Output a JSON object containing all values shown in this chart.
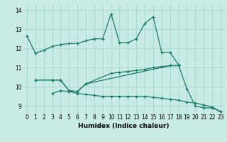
{
  "title": "",
  "xlabel": "Humidex (Indice chaleur)",
  "background_color": "#c8ebe6",
  "grid_color": "#a8d8d0",
  "line_color": "#1a7a6a",
  "xlim": [
    -0.5,
    23.5
  ],
  "ylim": [
    8.6,
    14.3
  ],
  "yticks": [
    9,
    10,
    11,
    12,
    13,
    14
  ],
  "xticks": [
    0,
    1,
    2,
    3,
    4,
    5,
    6,
    7,
    8,
    9,
    10,
    11,
    12,
    13,
    14,
    15,
    16,
    17,
    18,
    19,
    20,
    21,
    22,
    23
  ],
  "line1_x": [
    0,
    1,
    2,
    3,
    4,
    5,
    6,
    7,
    8,
    9,
    10,
    11,
    12,
    13,
    14,
    15,
    16,
    17,
    18,
    19,
    20,
    21,
    22,
    23
  ],
  "line1_y": [
    12.65,
    11.75,
    11.9,
    12.1,
    12.2,
    12.25,
    12.25,
    12.4,
    12.5,
    12.5,
    13.8,
    12.3,
    12.3,
    12.5,
    13.3,
    13.65,
    11.8,
    11.8,
    11.15,
    9.9,
    9.0,
    8.9,
    8.9,
    8.7
  ],
  "line2_x": [
    1,
    3,
    4,
    5,
    6,
    7,
    17,
    18
  ],
  "line2_y": [
    10.35,
    10.35,
    10.35,
    9.8,
    9.75,
    10.15,
    11.1,
    11.1
  ],
  "line3_x": [
    1,
    3,
    4,
    5,
    6,
    7,
    10,
    11,
    12,
    13,
    14,
    15,
    16,
    17,
    18
  ],
  "line3_y": [
    10.35,
    10.35,
    10.35,
    9.8,
    9.75,
    10.15,
    10.7,
    10.75,
    10.8,
    10.85,
    10.9,
    11.0,
    11.05,
    11.1,
    11.1
  ],
  "line4_x": [
    3,
    4,
    5,
    6,
    7,
    8,
    9,
    10,
    11,
    12,
    13,
    14,
    15,
    16,
    17,
    18,
    19,
    20,
    21,
    22,
    23
  ],
  "line4_y": [
    9.65,
    9.8,
    9.75,
    9.65,
    9.6,
    9.55,
    9.5,
    9.5,
    9.5,
    9.5,
    9.5,
    9.5,
    9.45,
    9.4,
    9.35,
    9.3,
    9.2,
    9.15,
    9.05,
    8.95,
    8.7
  ]
}
